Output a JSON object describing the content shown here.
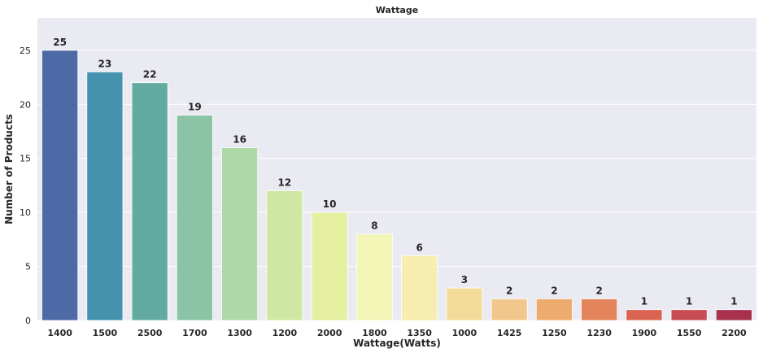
{
  "chart_data": {
    "type": "bar",
    "title": "Wattage",
    "xlabel": "Wattage(Watts)",
    "ylabel": "Number of Products",
    "categories": [
      "1400",
      "1500",
      "2500",
      "1700",
      "1300",
      "1200",
      "2000",
      "1800",
      "1350",
      "1000",
      "1425",
      "1250",
      "1230",
      "1900",
      "1550",
      "2200"
    ],
    "values": [
      25,
      23,
      22,
      19,
      16,
      12,
      10,
      8,
      6,
      3,
      2,
      2,
      2,
      1,
      1,
      1
    ],
    "ylim": [
      0,
      28
    ],
    "yticks": [
      0,
      5,
      10,
      15,
      20,
      25
    ],
    "grid": true,
    "colors": [
      "#4E6AA6",
      "#4592AE",
      "#63AAA1",
      "#8AC3A6",
      "#AED8A7",
      "#CEE7A2",
      "#E5EFA0",
      "#F4F6B7",
      "#F8EDB1",
      "#F3DB99",
      "#F2C78C",
      "#EDAC6E",
      "#E3845A",
      "#DB6352",
      "#C84D52",
      "#A7314F"
    ]
  }
}
